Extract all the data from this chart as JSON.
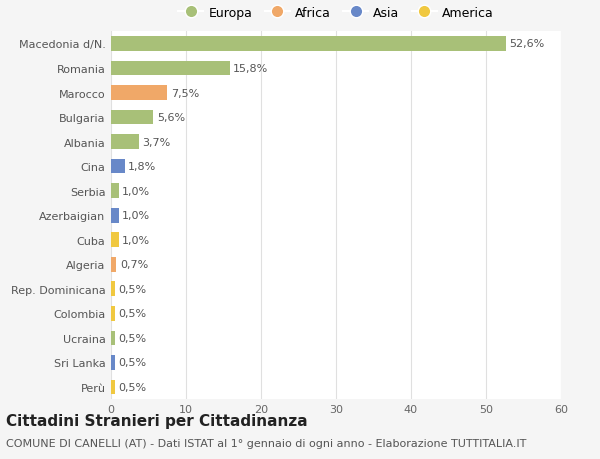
{
  "categories": [
    "Macedonia d/N.",
    "Romania",
    "Marocco",
    "Bulgaria",
    "Albania",
    "Cina",
    "Serbia",
    "Azerbaigian",
    "Cuba",
    "Algeria",
    "Rep. Dominicana",
    "Colombia",
    "Ucraina",
    "Sri Lanka",
    "Perù"
  ],
  "values": [
    52.6,
    15.8,
    7.5,
    5.6,
    3.7,
    1.8,
    1.0,
    1.0,
    1.0,
    0.7,
    0.5,
    0.5,
    0.5,
    0.5,
    0.5
  ],
  "labels": [
    "52,6%",
    "15,8%",
    "7,5%",
    "5,6%",
    "3,7%",
    "1,8%",
    "1,0%",
    "1,0%",
    "1,0%",
    "0,7%",
    "0,5%",
    "0,5%",
    "0,5%",
    "0,5%",
    "0,5%"
  ],
  "colors": [
    "#a8c078",
    "#a8c078",
    "#f0a868",
    "#a8c078",
    "#a8c078",
    "#6888c8",
    "#a8c078",
    "#6888c8",
    "#f0c840",
    "#f0a868",
    "#f0c840",
    "#f0c840",
    "#a8c078",
    "#6888c8",
    "#f0c840"
  ],
  "legend_labels": [
    "Europa",
    "Africa",
    "Asia",
    "America"
  ],
  "legend_colors": [
    "#a8c078",
    "#f0a868",
    "#6888c8",
    "#f0c840"
  ],
  "title": "Cittadini Stranieri per Cittadinanza",
  "subtitle": "COMUNE DI CANELLI (AT) - Dati ISTAT al 1° gennaio di ogni anno - Elaborazione TUTTITALIA.IT",
  "xlim": [
    0,
    60
  ],
  "xticks": [
    0,
    10,
    20,
    30,
    40,
    50,
    60
  ],
  "background_color": "#f5f5f5",
  "bar_background_color": "#ffffff",
  "grid_color": "#e0e0e0",
  "title_fontsize": 11,
  "subtitle_fontsize": 8,
  "label_fontsize": 8,
  "tick_fontsize": 8,
  "legend_fontsize": 9
}
